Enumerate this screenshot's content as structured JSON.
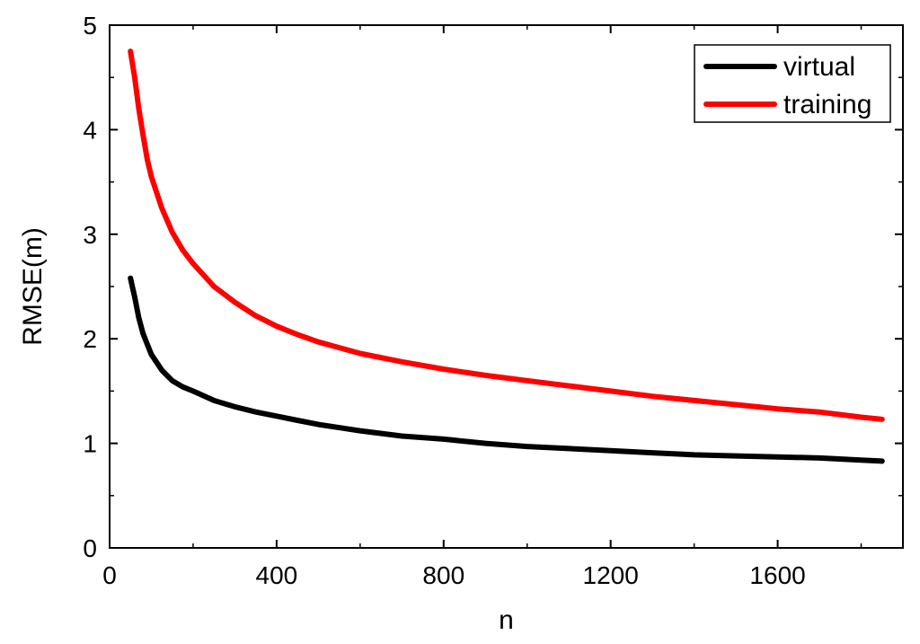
{
  "chart_data": {
    "type": "line",
    "title": "",
    "xlabel": "n",
    "ylabel": "RMSE(m)",
    "xlim": [
      0,
      1900
    ],
    "ylim": [
      0,
      5
    ],
    "x_ticks": [
      0,
      400,
      800,
      1200,
      1600
    ],
    "y_ticks": [
      0,
      1,
      2,
      3,
      4,
      5
    ],
    "grid": false,
    "legend_position": "top-right",
    "x": [
      50,
      60,
      70,
      80,
      90,
      100,
      125,
      150,
      175,
      200,
      250,
      300,
      350,
      400,
      450,
      500,
      600,
      700,
      800,
      900,
      1000,
      1100,
      1200,
      1300,
      1400,
      1500,
      1600,
      1700,
      1800,
      1850
    ],
    "series": [
      {
        "name": "virtual",
        "color": "#000000",
        "values": [
          2.58,
          2.4,
          2.2,
          2.05,
          1.95,
          1.85,
          1.7,
          1.6,
          1.54,
          1.5,
          1.41,
          1.35,
          1.3,
          1.26,
          1.22,
          1.18,
          1.12,
          1.07,
          1.04,
          1.0,
          0.97,
          0.95,
          0.93,
          0.91,
          0.89,
          0.88,
          0.87,
          0.86,
          0.84,
          0.83
        ]
      },
      {
        "name": "training",
        "color": "#ff0000",
        "values": [
          4.75,
          4.5,
          4.2,
          3.95,
          3.72,
          3.55,
          3.25,
          3.02,
          2.85,
          2.72,
          2.5,
          2.35,
          2.22,
          2.12,
          2.04,
          1.97,
          1.86,
          1.78,
          1.71,
          1.65,
          1.6,
          1.55,
          1.5,
          1.45,
          1.41,
          1.37,
          1.33,
          1.3,
          1.25,
          1.23
        ]
      }
    ]
  }
}
